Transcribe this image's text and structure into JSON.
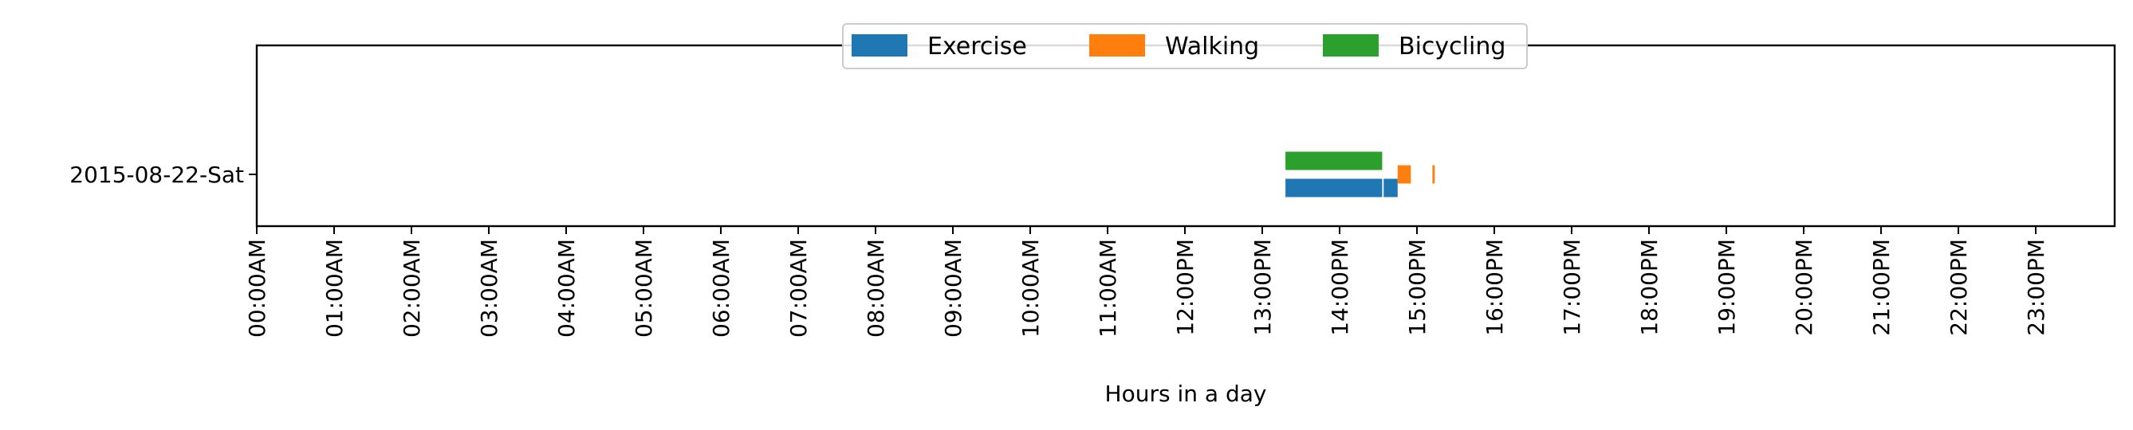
{
  "chart_data": {
    "type": "bar",
    "orientation": "horizontal-timeline",
    "title": "",
    "xlabel": "Hours in a day",
    "ylabel": "",
    "xlim": [
      0,
      24
    ],
    "x_tick_labels": [
      "00:00AM",
      "01:00AM",
      "02:00AM",
      "03:00AM",
      "04:00AM",
      "05:00AM",
      "06:00AM",
      "07:00AM",
      "08:00AM",
      "09:00AM",
      "10:00AM",
      "11:00AM",
      "12:00PM",
      "13:00PM",
      "14:00PM",
      "15:00PM",
      "16:00PM",
      "17:00PM",
      "18:00PM",
      "19:00PM",
      "20:00PM",
      "21:00PM",
      "22:00PM",
      "23:00PM"
    ],
    "categories": [
      "2015-08-22-Sat"
    ],
    "grid": false,
    "legend_position": "top-center",
    "series": [
      {
        "name": "Exercise",
        "color": "#1f77b4",
        "segments": [
          {
            "day": "2015-08-22-Sat",
            "start": 13.3,
            "end": 14.55
          },
          {
            "day": "2015-08-22-Sat",
            "start": 14.57,
            "end": 14.75
          }
        ]
      },
      {
        "name": "Walking",
        "color": "#ff7f0e",
        "segments": [
          {
            "day": "2015-08-22-Sat",
            "start": 14.75,
            "end": 14.92
          },
          {
            "day": "2015-08-22-Sat",
            "start": 15.2,
            "end": 15.23
          }
        ]
      },
      {
        "name": "Bicycling",
        "color": "#2ca02c",
        "segments": [
          {
            "day": "2015-08-22-Sat",
            "start": 13.3,
            "end": 14.55
          }
        ]
      }
    ]
  }
}
